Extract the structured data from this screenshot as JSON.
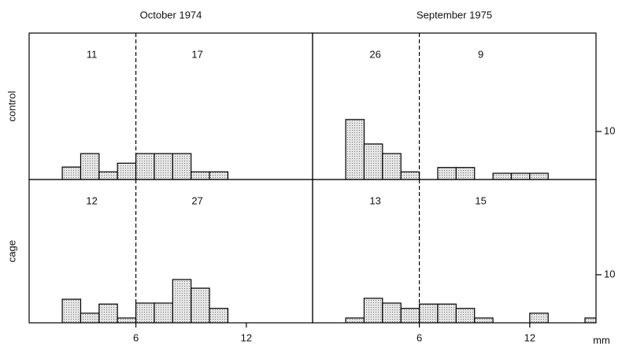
{
  "column_titles": [
    "October 1974",
    "September 1975"
  ],
  "row_labels": [
    "control",
    "cage"
  ],
  "x_unit": "mm",
  "chart_data": [
    {
      "type": "histogram",
      "bins": [
        2,
        3,
        4,
        5,
        6,
        7,
        8,
        9,
        10,
        11
      ],
      "values": [
        2.6,
        5.4,
        1.6,
        3.4,
        5.4,
        5.4,
        5.4,
        1.6,
        1.6
      ],
      "annotations": [
        "11",
        "17"
      ],
      "divider": 6,
      "xlim": [
        0.2,
        15.6
      ],
      "xticks": [
        6,
        12
      ],
      "ylim": [
        0,
        30.5
      ],
      "yticks": [],
      "color": "#d4d4d4"
    },
    {
      "type": "histogram",
      "bins": [
        2,
        3,
        4,
        5,
        6,
        7,
        8,
        9,
        10,
        11,
        12,
        13
      ],
      "values": [
        12.5,
        7.4,
        5.4,
        1.6,
        0,
        2.5,
        2.5,
        0,
        1.3,
        1.3,
        1.3
      ],
      "annotations": [
        "26",
        "9"
      ],
      "divider": 6,
      "xlim": [
        0.2,
        15.6
      ],
      "xticks": [
        6,
        12
      ],
      "ylim": [
        0,
        30.5
      ],
      "yticks": [
        10
      ],
      "color": "#d4d4d4"
    },
    {
      "type": "histogram",
      "bins": [
        2,
        3,
        4,
        5,
        6,
        7,
        8,
        9,
        10,
        11
      ],
      "values": [
        4.9,
        2.0,
        3.9,
        1.0,
        4.1,
        4.1,
        9.0,
        7.2,
        3.0
      ],
      "annotations": [
        "12",
        "27"
      ],
      "divider": 6,
      "xlim": [
        0.2,
        15.6
      ],
      "xticks": [
        6,
        12
      ],
      "ylim": [
        0,
        29.8
      ],
      "yticks": [],
      "color": "#d4d4d4"
    },
    {
      "type": "histogram",
      "bins": [
        2,
        3,
        4,
        5,
        6,
        7,
        8,
        9,
        10,
        11,
        12,
        13,
        14,
        15,
        16
      ],
      "values": [
        1.0,
        5.1,
        4.1,
        3.0,
        3.9,
        3.9,
        3.0,
        1.0,
        0,
        0,
        2.0,
        0,
        0,
        1.0
      ],
      "annotations": [
        "13",
        "15"
      ],
      "divider": 6,
      "xlim": [
        0.2,
        15.6
      ],
      "xticks": [
        6,
        12
      ],
      "ylim": [
        0,
        29.8
      ],
      "yticks": [
        10
      ],
      "color": "#d4d4d4"
    }
  ]
}
